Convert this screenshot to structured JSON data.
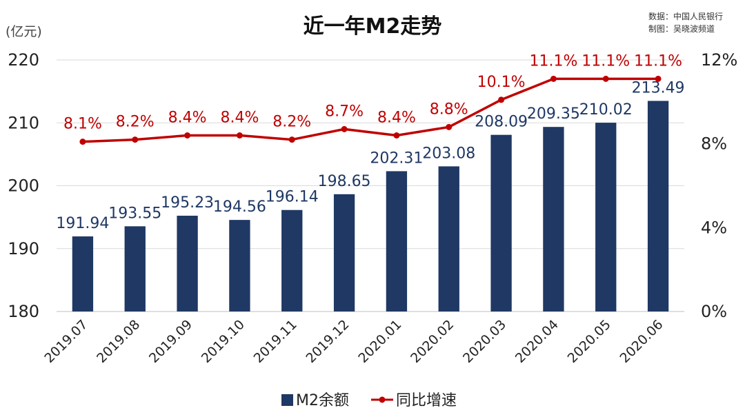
{
  "chart_data": {
    "type": "bar",
    "title": "近一年M2走势",
    "source_lines": [
      "数据：中国人民银行",
      "制图：吴晓波频道"
    ],
    "left_axis": {
      "unit_label": "(亿元)",
      "ylim": [
        180,
        220
      ],
      "ticks": [
        "180",
        "190",
        "200",
        "210",
        "220"
      ]
    },
    "right_axis": {
      "ylim": [
        0,
        12
      ],
      "ticks": [
        "0%",
        "4%",
        "8%",
        "12%"
      ]
    },
    "categories": [
      "2019.07",
      "2019.08",
      "2019.09",
      "2019.10",
      "2019.11",
      "2019.12",
      "2020.01",
      "2020.02",
      "2020.03",
      "2020.04",
      "2020.05",
      "2020.06"
    ],
    "series": [
      {
        "name": "M2余额",
        "type": "bar",
        "axis": "left",
        "color": "#1f3864",
        "values": [
          191.94,
          193.55,
          195.23,
          194.56,
          196.14,
          198.65,
          202.31,
          203.08,
          208.09,
          209.35,
          210.02,
          213.49
        ],
        "labels": [
          "191.94",
          "193.55",
          "195.23",
          "194.56",
          "196.14",
          "198.65",
          "202.31",
          "203.08",
          "208.09",
          "209.35",
          "210.02",
          "213.49"
        ]
      },
      {
        "name": "同比增速",
        "type": "line",
        "axis": "right",
        "color": "#c00000",
        "values": [
          8.1,
          8.2,
          8.4,
          8.4,
          8.2,
          8.7,
          8.4,
          8.8,
          10.1,
          11.1,
          11.1,
          11.1
        ],
        "labels": [
          "8.1%",
          "8.2%",
          "8.4%",
          "8.4%",
          "8.2%",
          "8.7%",
          "8.4%",
          "8.8%",
          "10.1%",
          "11.1%",
          "11.1%",
          "11.1%"
        ]
      }
    ],
    "grid": true,
    "legend_position": "bottom"
  }
}
